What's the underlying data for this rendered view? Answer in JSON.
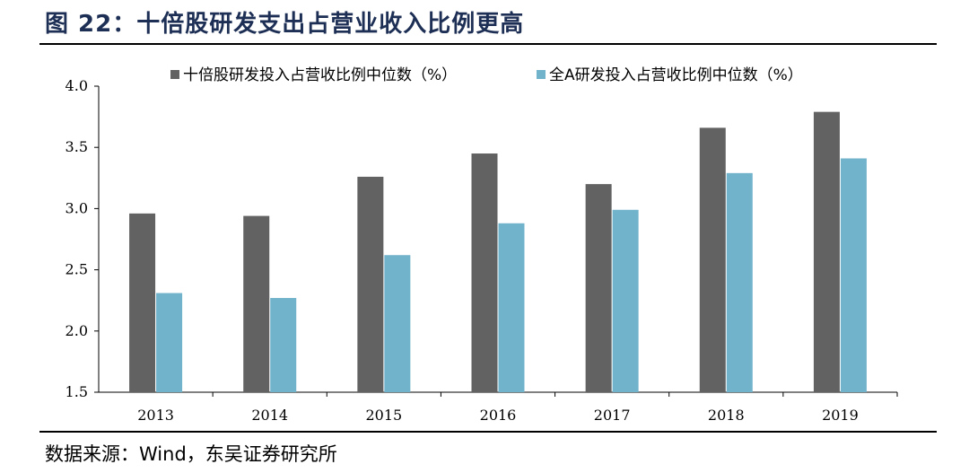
{
  "figure": {
    "title": "图 22：十倍股研发支出占营业收入比例更高",
    "source": "数据来源：Wind，东吴证券研究所"
  },
  "chart_data": {
    "type": "bar",
    "categories": [
      "2013",
      "2014",
      "2015",
      "2016",
      "2017",
      "2018",
      "2019"
    ],
    "series": [
      {
        "name": "十倍股研发投入占营收比例中位数（%）",
        "color": "#626262",
        "values": [
          2.96,
          2.94,
          3.26,
          3.45,
          3.2,
          3.66,
          3.79
        ]
      },
      {
        "name": "全A研发投入占营收比例中位数（%）",
        "color": "#72b3cc",
        "values": [
          2.31,
          2.27,
          2.62,
          2.88,
          2.99,
          3.29,
          3.41
        ]
      }
    ],
    "ylim": [
      1.5,
      4.0
    ],
    "yticks": [
      "1.5",
      "2.0",
      "2.5",
      "3.0",
      "3.5",
      "4.0"
    ],
    "grid": false,
    "legend_position": "top"
  }
}
